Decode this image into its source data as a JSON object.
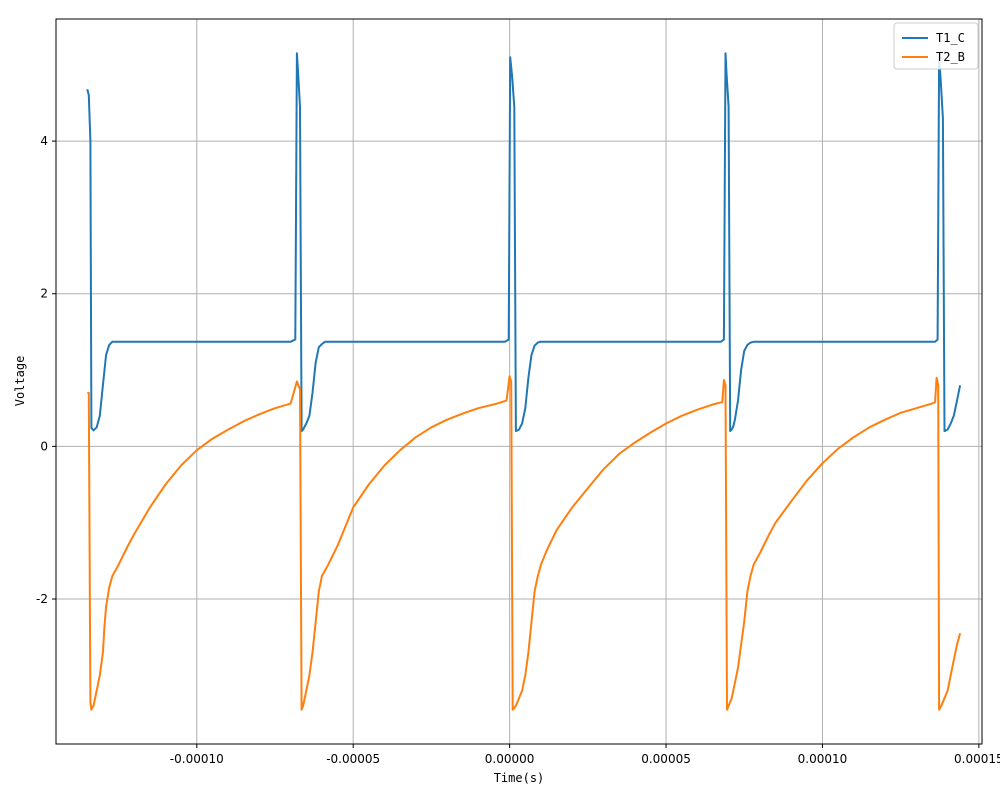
{
  "chart_data": {
    "type": "line",
    "title": "",
    "xlabel": "Time(s)",
    "ylabel": "Voltage",
    "xlim": [
      -0.000145,
      0.000151
    ],
    "ylim": [
      -3.9,
      5.6
    ],
    "grid": true,
    "legend_position": "top-right",
    "x_ticks": [
      -0.0001,
      -5e-05,
      0.0,
      5e-05,
      0.0001,
      0.00015
    ],
    "x_tick_labels": [
      "-0.00010",
      "-0.00005",
      "0.00000",
      "0.00005",
      "0.00010",
      "0.00015"
    ],
    "y_ticks": [
      -2,
      0,
      2,
      4
    ],
    "y_tick_labels": [
      "-2",
      "0",
      "2",
      "4"
    ],
    "series": [
      {
        "name": "T1_C",
        "color": "#1f77b4",
        "x": [
          -0.000135,
          -0.0001345,
          -0.000134,
          -0.0001337,
          -0.000133,
          -0.000132,
          -0.000131,
          -0.00013,
          -0.000129,
          -0.000128,
          -0.000127,
          -0.000126,
          -7e-05,
          -6.85e-05,
          -6.8e-05,
          -6.76e-05,
          -6.7e-05,
          -6.65e-05,
          -6.6e-05,
          -6.55e-05,
          -6.5e-05,
          -6.4e-05,
          -6.3e-05,
          -6.2e-05,
          -6.1e-05,
          -6e-05,
          -5.9e-05,
          -5.85e-05,
          -1.5e-06,
          -3e-07,
          2e-07,
          8e-07,
          1.5e-06,
          2e-06,
          3e-06,
          4e-06,
          5e-06,
          6e-06,
          7e-06,
          8e-06,
          9e-06,
          9.8e-06,
          6.75e-05,
          6.85e-05,
          6.9e-05,
          6.94e-05,
          7e-05,
          7.05e-05,
          7.1e-05,
          7.15e-05,
          7.2e-05,
          7.3e-05,
          7.4e-05,
          7.5e-05,
          7.6e-05,
          7.7e-05,
          7.8e-05,
          7.85e-05,
          0.000136,
          0.0001368,
          0.0001373,
          0.0001378,
          0.0001385,
          0.000139,
          0.00014,
          0.000141,
          0.000142,
          0.000143,
          0.000144
        ],
        "y": [
          4.68,
          4.6,
          4.0,
          0.24,
          0.21,
          0.25,
          0.4,
          0.8,
          1.2,
          1.33,
          1.37,
          1.37,
          1.37,
          1.4,
          5.15,
          4.9,
          4.45,
          0.2,
          0.22,
          0.26,
          0.3,
          0.4,
          0.7,
          1.1,
          1.3,
          1.34,
          1.37,
          1.37,
          1.37,
          1.4,
          5.1,
          4.85,
          4.45,
          0.2,
          0.22,
          0.3,
          0.5,
          0.9,
          1.2,
          1.32,
          1.36,
          1.37,
          1.37,
          1.4,
          5.15,
          4.85,
          4.45,
          0.2,
          0.22,
          0.26,
          0.35,
          0.6,
          1.0,
          1.25,
          1.33,
          1.36,
          1.37,
          1.37,
          1.37,
          1.4,
          5.1,
          4.8,
          4.3,
          0.2,
          0.22,
          0.3,
          0.4,
          0.6,
          0.8
        ]
      },
      {
        "name": "T2_B",
        "color": "#ff7f0e",
        "x": [
          -0.000135,
          -0.0001345,
          -0.000134,
          -0.0001337,
          -0.000133,
          -0.0001325,
          -0.000132,
          -0.000131,
          -0.00013,
          -0.0001295,
          -0.000129,
          -0.000128,
          -0.000127,
          -0.000125,
          -0.000122,
          -0.00012,
          -0.000115,
          -0.00011,
          -0.000105,
          -0.0001,
          -9.5e-05,
          -9e-05,
          -8.5e-05,
          -8e-05,
          -7.5e-05,
          -7e-05,
          -6.8e-05,
          -6.7e-05,
          -6.65e-05,
          -6.6e-05,
          -6.55e-05,
          -6.5e-05,
          -6.4e-05,
          -6.3e-05,
          -6.2e-05,
          -6.1e-05,
          -6e-05,
          -5.8e-05,
          -5.5e-05,
          -5e-05,
          -4.5e-05,
          -4e-05,
          -3.5e-05,
          -3e-05,
          -2.5e-05,
          -2e-05,
          -1.5e-05,
          -1e-05,
          -5e-06,
          -1e-06,
          0.0,
          5e-07,
          1e-06,
          2e-06,
          3e-06,
          4e-06,
          5e-06,
          6e-06,
          7e-06,
          8e-06,
          9e-06,
          1e-05,
          1.2e-05,
          1.5e-05,
          2e-05,
          2.5e-05,
          3e-05,
          3.5e-05,
          4e-05,
          4.5e-05,
          5e-05,
          5.5e-05,
          6e-05,
          6.5e-05,
          6.8e-05,
          6.85e-05,
          6.9e-05,
          6.9e-05,
          6.95e-05,
          7e-05,
          7.1e-05,
          7.2e-05,
          7.3e-05,
          7.4e-05,
          7.5e-05,
          7.6e-05,
          7.7e-05,
          7.8e-05,
          8e-05,
          8.3e-05,
          8.5e-05,
          9e-05,
          9.5e-05,
          0.0001,
          0.000105,
          0.00011,
          0.000115,
          0.00012,
          0.000125,
          0.00013,
          0.000135,
          0.000136,
          0.0001365,
          0.000137,
          0.0001373,
          0.000138,
          0.000139,
          0.00014,
          0.000141,
          0.000142,
          0.000143,
          0.000144
        ],
        "y": [
          0.7,
          0.7,
          -3.35,
          -3.45,
          -3.4,
          -3.3,
          -3.2,
          -3.0,
          -2.7,
          -2.35,
          -2.1,
          -1.85,
          -1.7,
          -1.55,
          -1.3,
          -1.15,
          -0.8,
          -0.5,
          -0.25,
          -0.05,
          0.1,
          0.22,
          0.33,
          0.42,
          0.5,
          0.56,
          0.85,
          0.75,
          -3.45,
          -3.4,
          -3.3,
          -3.2,
          -3.0,
          -2.7,
          -2.3,
          -1.9,
          -1.7,
          -1.55,
          -1.3,
          -0.8,
          -0.5,
          -0.25,
          -0.05,
          0.12,
          0.25,
          0.35,
          0.43,
          0.5,
          0.55,
          0.6,
          0.92,
          0.85,
          -3.45,
          -3.4,
          -3.3,
          -3.2,
          -3.0,
          -2.7,
          -2.3,
          -1.9,
          -1.7,
          -1.55,
          -1.35,
          -1.1,
          -0.8,
          -0.55,
          -0.3,
          -0.1,
          0.05,
          0.18,
          0.3,
          0.4,
          0.48,
          0.55,
          0.58,
          0.87,
          0.8,
          0.8,
          -3.45,
          -3.4,
          -3.3,
          -3.1,
          -2.9,
          -2.6,
          -2.3,
          -1.9,
          -1.7,
          -1.55,
          -1.4,
          -1.15,
          -1.0,
          -0.72,
          -0.45,
          -0.22,
          -0.03,
          0.12,
          0.25,
          0.35,
          0.44,
          0.5,
          0.56,
          0.58,
          0.9,
          0.8,
          -3.45,
          -3.4,
          -3.3,
          -3.2,
          -3.0,
          -2.8,
          -2.6,
          -2.45
        ]
      }
    ]
  }
}
